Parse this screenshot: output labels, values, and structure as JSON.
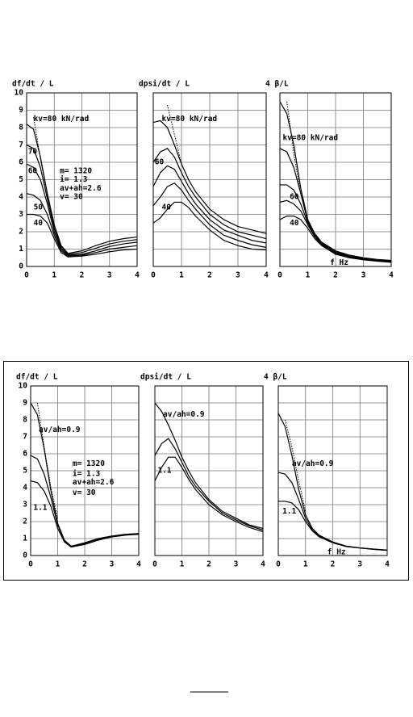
{
  "chart_data": [
    {
      "type": "line",
      "title": "df/dt / L",
      "x": [
        0,
        0.25,
        0.5,
        0.75,
        1,
        1.25,
        1.5,
        2,
        2.5,
        3,
        3.5,
        4
      ],
      "xlim": [
        0,
        4
      ],
      "xticks": [
        0,
        1,
        2,
        3,
        4
      ],
      "ylim": [
        0,
        10
      ],
      "yticks": [
        0,
        1,
        2,
        3,
        4,
        5,
        6,
        7,
        8,
        9,
        10
      ],
      "grid": true,
      "annotations": [
        "kv=80 kN/rad",
        "70",
        "60",
        "m= 1320",
        "i= 1.3",
        "av+ah=2.6",
        "v= 30",
        "50",
        "40"
      ],
      "series": [
        {
          "color": "#000000",
          "style": "dotted",
          "values": [
            null,
            8.6,
            6.2,
            4.1,
            2.4,
            null,
            null,
            null,
            null,
            null,
            null,
            null
          ]
        },
        {
          "color": "#000000",
          "style": "solid",
          "values": [
            8.2,
            7.9,
            6.3,
            4.2,
            2.4,
            1.2,
            0.75,
            0.9,
            1.2,
            1.45,
            1.6,
            1.7
          ]
        },
        {
          "color": "#000000",
          "style": "solid",
          "values": [
            7.0,
            6.8,
            5.7,
            3.9,
            2.2,
            1.1,
            0.7,
            0.8,
            1.05,
            1.3,
            1.45,
            1.55
          ]
        },
        {
          "color": "#000000",
          "style": "solid",
          "values": [
            5.9,
            5.7,
            5.0,
            3.6,
            2.0,
            1.0,
            0.65,
            0.7,
            0.9,
            1.15,
            1.3,
            1.4
          ]
        },
        {
          "color": "#000000",
          "style": "solid",
          "values": [
            4.2,
            4.1,
            3.8,
            3.0,
            1.8,
            0.9,
            0.6,
            0.65,
            0.8,
            1.0,
            1.1,
            1.2
          ]
        },
        {
          "color": "#000000",
          "style": "solid",
          "values": [
            3.0,
            3.0,
            2.9,
            2.5,
            1.6,
            0.8,
            0.55,
            0.6,
            0.7,
            0.85,
            0.95,
            1.0
          ]
        }
      ]
    },
    {
      "type": "line",
      "title": "dpsi/dt / L",
      "x": [
        0,
        0.25,
        0.5,
        0.75,
        1,
        1.25,
        1.5,
        2,
        2.5,
        3,
        3.5,
        4
      ],
      "xlim": [
        0,
        4
      ],
      "xticks": [
        0,
        1,
        2,
        3,
        4
      ],
      "ylim": [
        0,
        10
      ],
      "grid": true,
      "annotations": [
        "kv=80 kN/rad",
        "60",
        "40"
      ],
      "series": [
        {
          "color": "#000000",
          "style": "dotted",
          "values": [
            null,
            null,
            9.3,
            7.6,
            5.9,
            null,
            null,
            null,
            null,
            null,
            null,
            null
          ]
        },
        {
          "color": "#000000",
          "style": "solid",
          "values": [
            8.3,
            8.4,
            8.0,
            7.0,
            5.9,
            5.0,
            4.3,
            3.3,
            2.7,
            2.3,
            2.1,
            1.9
          ]
        },
        {
          "color": "#000000",
          "style": "solid",
          "values": [
            6.0,
            6.6,
            6.8,
            6.3,
            5.4,
            4.6,
            4.0,
            3.0,
            2.4,
            2.0,
            1.8,
            1.6
          ]
        },
        {
          "color": "#000000",
          "style": "solid",
          "values": [
            4.6,
            5.4,
            5.8,
            5.6,
            4.9,
            4.2,
            3.6,
            2.7,
            2.1,
            1.8,
            1.5,
            1.35
          ]
        },
        {
          "color": "#000000",
          "style": "solid",
          "values": [
            3.5,
            4.0,
            4.6,
            4.8,
            4.4,
            3.8,
            3.3,
            2.4,
            1.8,
            1.5,
            1.25,
            1.1
          ]
        },
        {
          "color": "#000000",
          "style": "solid",
          "values": [
            2.5,
            2.8,
            3.3,
            3.7,
            3.7,
            3.4,
            2.9,
            2.1,
            1.5,
            1.2,
            1.0,
            0.95
          ]
        }
      ]
    },
    {
      "type": "line",
      "title": "4 β/L",
      "xlabel": "f Hz",
      "x": [
        0,
        0.25,
        0.5,
        0.75,
        1,
        1.25,
        1.5,
        2,
        2.5,
        3,
        3.5,
        4
      ],
      "xlim": [
        0,
        4
      ],
      "xticks": [
        0,
        1,
        2,
        3,
        4
      ],
      "ylim": [
        0,
        10
      ],
      "grid": true,
      "annotations": [
        "kv=80 kN/rad",
        "60",
        "40"
      ],
      "series": [
        {
          "color": "#000000",
          "style": "dotted",
          "values": [
            null,
            9.5,
            6.5,
            4.2,
            2.6,
            null,
            null,
            null,
            null,
            null,
            null,
            null
          ]
        },
        {
          "color": "#000000",
          "style": "solid",
          "values": [
            9.5,
            8.8,
            7.0,
            4.5,
            2.7,
            1.9,
            1.4,
            0.9,
            0.65,
            0.5,
            0.4,
            0.35
          ]
        },
        {
          "color": "#000000",
          "style": "solid",
          "values": [
            6.8,
            6.6,
            5.7,
            4.2,
            2.6,
            1.8,
            1.35,
            0.85,
            0.6,
            0.45,
            0.37,
            0.3
          ]
        },
        {
          "color": "#000000",
          "style": "solid",
          "values": [
            4.7,
            4.7,
            4.4,
            3.6,
            2.5,
            1.75,
            1.3,
            0.8,
            0.55,
            0.42,
            0.34,
            0.28
          ]
        },
        {
          "color": "#000000",
          "style": "solid",
          "values": [
            3.7,
            3.8,
            3.6,
            3.2,
            2.4,
            1.7,
            1.25,
            0.75,
            0.52,
            0.4,
            0.32,
            0.26
          ]
        },
        {
          "color": "#000000",
          "style": "solid",
          "values": [
            2.7,
            2.9,
            2.9,
            2.7,
            2.2,
            1.6,
            1.2,
            0.7,
            0.5,
            0.38,
            0.3,
            0.24
          ]
        }
      ]
    },
    {
      "type": "line",
      "title": "df/dt / L",
      "x": [
        0,
        0.25,
        0.5,
        0.75,
        1,
        1.25,
        1.5,
        2,
        2.5,
        3,
        3.5,
        4
      ],
      "xlim": [
        0,
        4
      ],
      "xticks": [
        0,
        1,
        2,
        3,
        4
      ],
      "ylim": [
        0,
        10
      ],
      "yticks": [
        0,
        1,
        2,
        3,
        4,
        5,
        6,
        7,
        8,
        9,
        10
      ],
      "grid": true,
      "annotations": [
        "av/ah=0.9",
        "m= 1320",
        "i= 1.3",
        "av+ah=2.6",
        "v= 30",
        "1.1"
      ],
      "series": [
        {
          "color": "#000000",
          "style": "dotted",
          "values": [
            null,
            9.0,
            6.4,
            4.0,
            2.2,
            null,
            null,
            null,
            null,
            null,
            null,
            null
          ]
        },
        {
          "color": "#000000",
          "style": "solid",
          "values": [
            9.0,
            8.3,
            6.3,
            3.8,
            1.9,
            0.9,
            0.55,
            0.75,
            1.0,
            1.15,
            1.25,
            1.3
          ]
        },
        {
          "color": "#000000",
          "style": "solid",
          "values": [
            5.9,
            5.7,
            4.8,
            3.4,
            1.8,
            0.85,
            0.55,
            0.7,
            0.95,
            1.1,
            1.2,
            1.3
          ]
        },
        {
          "color": "#000000",
          "style": "solid",
          "values": [
            4.4,
            4.3,
            3.8,
            2.9,
            1.6,
            0.8,
            0.5,
            0.65,
            0.9,
            1.1,
            1.2,
            1.25
          ]
        }
      ]
    },
    {
      "type": "line",
      "title": "dpsi/dt / L",
      "x": [
        0,
        0.25,
        0.5,
        0.75,
        1,
        1.25,
        1.5,
        2,
        2.5,
        3,
        3.5,
        4
      ],
      "xlim": [
        0,
        4
      ],
      "xticks": [
        0,
        1,
        2,
        3,
        4
      ],
      "ylim": [
        0,
        10
      ],
      "grid": true,
      "annotations": [
        "av/ah=0.9",
        "1.1"
      ],
      "series": [
        {
          "color": "#000000",
          "style": "solid",
          "values": [
            9.0,
            8.5,
            7.7,
            6.8,
            5.8,
            5.0,
            4.3,
            3.3,
            2.6,
            2.2,
            1.8,
            1.6
          ]
        },
        {
          "color": "#000000",
          "style": "solid",
          "values": [
            5.9,
            6.6,
            6.9,
            6.3,
            5.5,
            4.7,
            4.1,
            3.2,
            2.5,
            2.1,
            1.75,
            1.5
          ]
        },
        {
          "color": "#000000",
          "style": "solid",
          "values": [
            4.4,
            5.2,
            5.8,
            5.8,
            5.2,
            4.5,
            3.9,
            3.0,
            2.4,
            2.0,
            1.65,
            1.4
          ]
        }
      ]
    },
    {
      "type": "line",
      "title": "4 β/L",
      "xlabel": "f Hz",
      "x": [
        0,
        0.25,
        0.5,
        0.75,
        1,
        1.25,
        1.5,
        2,
        2.5,
        3,
        3.5,
        4
      ],
      "xlim": [
        0,
        4
      ],
      "xticks": [
        0,
        1,
        2,
        3,
        4
      ],
      "ylim": [
        0,
        10
      ],
      "grid": true,
      "annotations": [
        "av/ah=0.9",
        "1.1"
      ],
      "series": [
        {
          "color": "#000000",
          "style": "dotted",
          "values": [
            null,
            8.0,
            6.4,
            4.4,
            2.6,
            null,
            null,
            null,
            null,
            null,
            null,
            null
          ]
        },
        {
          "color": "#000000",
          "style": "solid",
          "values": [
            8.4,
            7.6,
            5.9,
            3.9,
            2.4,
            1.6,
            1.2,
            0.8,
            0.55,
            0.45,
            0.38,
            0.32
          ]
        },
        {
          "color": "#000000",
          "style": "solid",
          "values": [
            4.9,
            4.8,
            4.3,
            3.3,
            2.2,
            1.5,
            1.15,
            0.78,
            0.55,
            0.45,
            0.37,
            0.31
          ]
        },
        {
          "color": "#000000",
          "style": "solid",
          "values": [
            3.2,
            3.2,
            3.1,
            2.7,
            2.0,
            1.45,
            1.1,
            0.75,
            0.53,
            0.44,
            0.36,
            0.3
          ]
        }
      ]
    }
  ]
}
